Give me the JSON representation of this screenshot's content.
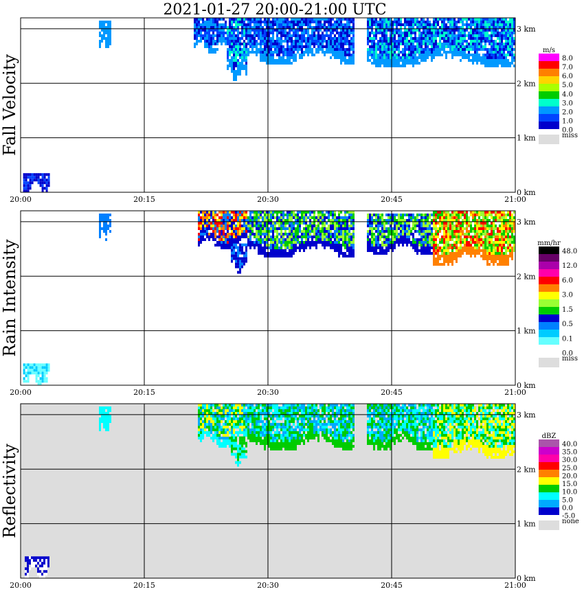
{
  "title": "2021-01-27   20:00-21:00 UTC",
  "chart_data": [
    {
      "type": "heatmap",
      "panel": "fall-velocity",
      "ylabel": "Fall Velocity",
      "x_ticks": [
        "20:00",
        "20:15",
        "20:30",
        "20:45",
        "21:00"
      ],
      "xlim": [
        "20:00",
        "21:00"
      ],
      "y_ticks": [
        "0 km",
        "1 km",
        "2 km",
        "3 km"
      ],
      "ylim_km": [
        0,
        3.2
      ],
      "grid": true,
      "background": "#ffffff",
      "legend": {
        "unit": "m/s",
        "placement": "right",
        "labels": [
          "8.0",
          "7.0",
          "6.0",
          "5.0",
          "4.0",
          "3.0",
          "2.0",
          "1.0",
          "0.0"
        ],
        "colors": [
          "#ff00ff",
          "#ff0000",
          "#ff8000",
          "#ffd400",
          "#aaff00",
          "#00cc00",
          "#00ffcc",
          "#0099ff",
          "#0044ff",
          "#0000cc"
        ],
        "missing_label": "miss",
        "missing_color": "#dddddd"
      },
      "echoes": [
        {
          "t0": 21.0,
          "t1": 25.0,
          "z_bottom": 2.55,
          "z_top": 3.2,
          "colors": [
            "#0099ff",
            "#0044ff",
            "#0000cc"
          ]
        },
        {
          "t0": 25.0,
          "t1": 27.5,
          "z_bottom": 2.05,
          "z_top": 3.2,
          "colors": [
            "#0099ff",
            "#0044ff",
            "#0000cc",
            "#00ffcc"
          ]
        },
        {
          "t0": 27.5,
          "t1": 40.5,
          "z_bottom": 2.35,
          "z_top": 3.2,
          "colors": [
            "#0099ff",
            "#0044ff",
            "#0000cc"
          ]
        },
        {
          "t0": 42.0,
          "t1": 60.0,
          "z_bottom": 2.3,
          "z_top": 3.2,
          "colors": [
            "#0099ff",
            "#0044ff",
            "#0000cc",
            "#00ffcc"
          ]
        },
        {
          "t0": 0.3,
          "t1": 3.5,
          "z_bottom": 0.0,
          "z_top": 0.35,
          "colors": [
            "#0000cc",
            "#0044ff"
          ]
        },
        {
          "t0": 9.5,
          "t1": 11.0,
          "z_bottom": 2.65,
          "z_top": 3.15,
          "colors": [
            "#0099ff"
          ]
        }
      ]
    },
    {
      "type": "heatmap",
      "panel": "rain-intensity",
      "ylabel": "Rain Intensity",
      "x_ticks": [
        "20:00",
        "20:15",
        "20:30",
        "20:45",
        "21:00"
      ],
      "xlim": [
        "20:00",
        "21:00"
      ],
      "y_ticks": [
        "0 km",
        "1 km",
        "2 km",
        "3 km"
      ],
      "ylim_km": [
        0,
        3.2
      ],
      "grid": true,
      "background": "#ffffff",
      "legend": {
        "unit": "mm/hr",
        "placement": "right",
        "labels": [
          "48.0",
          "12.0",
          "6.0",
          "3.0",
          "1.5",
          "0.5",
          "0.1",
          "0.0"
        ],
        "colors": [
          "#000000",
          "#660066",
          "#aa00aa",
          "#ff00aa",
          "#ff0000",
          "#ff8000",
          "#ffff00",
          "#99ff33",
          "#00cc00",
          "#0000cc",
          "#0080ff",
          "#00ccff",
          "#66ffff",
          "#ffffff"
        ],
        "missing_label": "miss",
        "missing_color": "#dddddd"
      },
      "echoes": [
        {
          "t0": 21.5,
          "t1": 27.5,
          "z_bottom": 2.5,
          "z_top": 3.2,
          "colors": [
            "#0000cc",
            "#0080ff",
            "#ff8000",
            "#ffff00",
            "#ff0000"
          ]
        },
        {
          "t0": 25.5,
          "t1": 27.5,
          "z_bottom": 2.05,
          "z_top": 2.6,
          "colors": [
            "#0000cc",
            "#0080ff"
          ]
        },
        {
          "t0": 27.5,
          "t1": 40.5,
          "z_bottom": 2.35,
          "z_top": 3.2,
          "colors": [
            "#0000cc",
            "#0080ff",
            "#00cc00",
            "#99ff33"
          ]
        },
        {
          "t0": 42.0,
          "t1": 50.0,
          "z_bottom": 2.4,
          "z_top": 3.15,
          "colors": [
            "#0000cc",
            "#0080ff",
            "#00cc00",
            "#99ff33"
          ]
        },
        {
          "t0": 50.0,
          "t1": 60.0,
          "z_bottom": 2.2,
          "z_top": 3.2,
          "colors": [
            "#ff8000",
            "#ffff00",
            "#ff0000",
            "#99ff33",
            "#00cc00"
          ]
        },
        {
          "t0": 0.3,
          "t1": 3.5,
          "z_bottom": 0.0,
          "z_top": 0.4,
          "colors": [
            "#66ffff",
            "#00ccff"
          ]
        },
        {
          "t0": 9.5,
          "t1": 11.0,
          "z_bottom": 2.65,
          "z_top": 3.15,
          "colors": [
            "#0080ff"
          ]
        }
      ]
    },
    {
      "type": "heatmap",
      "panel": "reflectivity",
      "ylabel": "Reflectivity",
      "x_ticks": [
        "20:00",
        "20:15",
        "20:30",
        "20:45",
        "21:00"
      ],
      "xlim": [
        "20:00",
        "21:00"
      ],
      "y_ticks": [
        "0 km",
        "1 km",
        "2 km",
        "3 km"
      ],
      "ylim_km": [
        0,
        3.2
      ],
      "grid": true,
      "background": "#dddddd",
      "legend": {
        "unit": "dBZ",
        "placement": "right",
        "labels": [
          "40.0",
          "35.0",
          "30.0",
          "25.0",
          "20.0",
          "15.0",
          "10.0",
          "5.0",
          "0.0",
          "-5.0"
        ],
        "colors": [
          "#aa55aa",
          "#cc00cc",
          "#ff00aa",
          "#ff0000",
          "#ff8000",
          "#ffff00",
          "#00cc00",
          "#00ffff",
          "#00aaff",
          "#0000cc"
        ],
        "missing_label": "none",
        "missing_color": "#dddddd"
      },
      "echoes": [
        {
          "t0": 21.5,
          "t1": 27.5,
          "z_bottom": 2.4,
          "z_top": 3.2,
          "colors": [
            "#00ffff",
            "#00cc00",
            "#ffff00",
            "#00aaff"
          ]
        },
        {
          "t0": 25.5,
          "t1": 27.5,
          "z_bottom": 2.05,
          "z_top": 2.6,
          "colors": [
            "#00ffff",
            "#00cc00"
          ]
        },
        {
          "t0": 27.5,
          "t1": 40.5,
          "z_bottom": 2.35,
          "z_top": 3.2,
          "colors": [
            "#00cc00",
            "#00ffff",
            "#00aaff"
          ]
        },
        {
          "t0": 42.0,
          "t1": 50.0,
          "z_bottom": 2.35,
          "z_top": 3.2,
          "colors": [
            "#00cc00",
            "#00ffff",
            "#00aaff"
          ]
        },
        {
          "t0": 50.0,
          "t1": 60.0,
          "z_bottom": 2.2,
          "z_top": 3.2,
          "colors": [
            "#ffff00",
            "#00cc00",
            "#00ffff"
          ]
        },
        {
          "t0": 0.5,
          "t1": 3.5,
          "z_bottom": 0.0,
          "z_top": 0.4,
          "colors": [
            "#ffffff",
            "#0000cc"
          ]
        },
        {
          "t0": 9.5,
          "t1": 11.0,
          "z_bottom": 2.65,
          "z_top": 3.15,
          "colors": [
            "#00ffff"
          ]
        }
      ]
    }
  ]
}
